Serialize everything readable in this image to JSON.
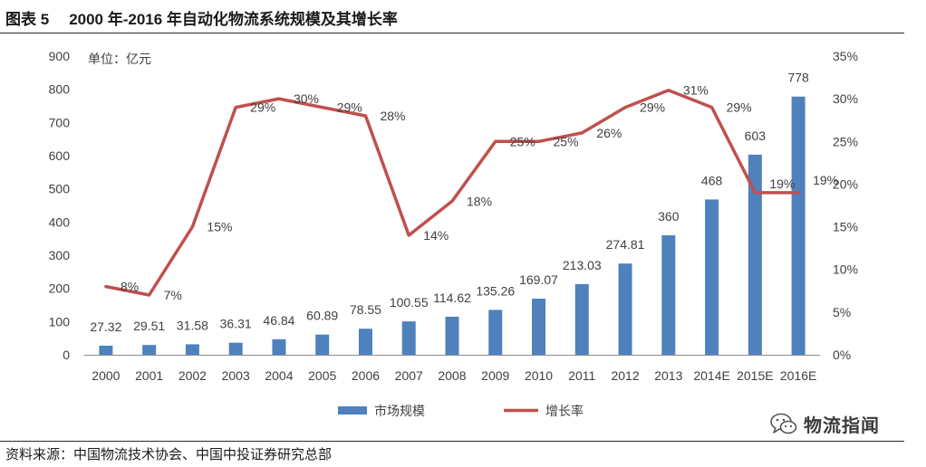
{
  "figure_label": "图表 5",
  "chart_data": {
    "type": "bar",
    "title": "2000 年-2016 年自动化物流系统规模及其增长率",
    "unit_label": "单位：亿元",
    "categories": [
      "2000",
      "2001",
      "2002",
      "2003",
      "2004",
      "2005",
      "2006",
      "2007",
      "2008",
      "2009",
      "2010",
      "2011",
      "2012",
      "2013",
      "2014E",
      "2015E",
      "2016E"
    ],
    "series": [
      {
        "name": "市场规模",
        "type": "bar",
        "color": "#4F81BD",
        "values": [
          27.32,
          29.51,
          31.58,
          36.31,
          46.84,
          60.89,
          78.55,
          100.55,
          114.62,
          135.26,
          169.07,
          213.03,
          274.81,
          360,
          468,
          603,
          778
        ],
        "data_labels": [
          "27.32",
          "29.51",
          "31.58",
          "36.31",
          "46.84",
          "60.89",
          "78.55",
          "100.55",
          "114.62",
          "135.26",
          "169.07",
          "213.03",
          "274.81",
          "360",
          "468",
          "603",
          "778"
        ]
      },
      {
        "name": "增长率",
        "type": "line",
        "color": "#C0504D",
        "values": [
          8,
          7,
          15,
          29,
          30,
          29,
          28,
          14,
          18,
          25,
          25,
          26,
          29,
          31,
          29,
          19,
          19
        ],
        "data_labels": [
          "8%",
          "7%",
          "15%",
          "29%",
          "30%",
          "29%",
          "28%",
          "14%",
          "18%",
          "25%",
          "25%",
          "26%",
          "29%",
          "31%",
          "29%",
          "19%",
          "19%"
        ]
      }
    ],
    "y_left": {
      "lim": [
        0,
        900
      ],
      "tick_labels": [
        "0",
        "100",
        "200",
        "300",
        "400",
        "500",
        "600",
        "700",
        "800",
        "900"
      ]
    },
    "y_right": {
      "lim": [
        0,
        35
      ],
      "tick_labels": [
        "0%",
        "5%",
        "10%",
        "15%",
        "20%",
        "25%",
        "30%",
        "35%"
      ]
    },
    "grid": false,
    "legend_position": "bottom"
  },
  "source": "资料来源：中国物流技术协会、中国中投证券研究总部",
  "watermark": "物流指闻"
}
